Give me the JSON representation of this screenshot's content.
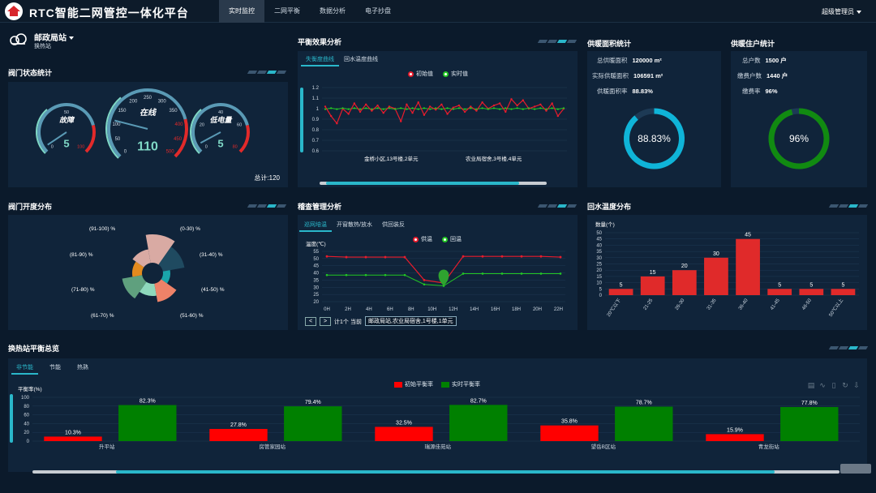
{
  "app": {
    "title": "RTC智能二网管控一体化平台",
    "nav": [
      "实时监控",
      "二网平衡",
      "数据分析",
      "电子抄盘"
    ],
    "active_nav": 0,
    "user": "超级管理员"
  },
  "station": {
    "name": "邮政局站",
    "sub": "换热站"
  },
  "valve_status": {
    "title": "阀门状态统计",
    "gauges": [
      {
        "label": "故障",
        "value": "5",
        "ticks": [
          "0",
          "50",
          "100"
        ],
        "max": 120,
        "num": 5
      },
      {
        "label": "在线",
        "value": "110",
        "ticks": [
          "0",
          "50",
          "100",
          "150",
          "200",
          "250",
          "300",
          "350",
          "400",
          "450",
          "500"
        ],
        "max": 500,
        "num": 110
      },
      {
        "label": "低电量",
        "value": "5",
        "ticks": [
          "0",
          "20",
          "40",
          "60",
          "80"
        ],
        "max": 80,
        "num": 5
      }
    ],
    "total": "总计:120"
  },
  "balance": {
    "title": "平衡效果分析",
    "tabs": [
      "失衡度曲线",
      "回水温度曲线"
    ],
    "active_tab": 0,
    "legend": [
      "初始值",
      "实时值"
    ],
    "x_labels": [
      "金桥小区,13号楼,2单元",
      "农业局宿舍,3号楼,4单元"
    ]
  },
  "heating_area": {
    "title": "供暖面积统计",
    "rows": [
      {
        "label": "总供暖面积",
        "value": "120000 m²"
      },
      {
        "label": "实际供暖面积",
        "value": "106591 m²"
      },
      {
        "label": "供暖面积率",
        "value": "88.83%"
      }
    ],
    "ring": "88.83%",
    "ring_pct": 88.83,
    "color": "#0fb4d8"
  },
  "households": {
    "title": "供暖住户统计",
    "rows": [
      {
        "label": "总户数",
        "value": "1500 户"
      },
      {
        "label": "缴费户数",
        "value": "1440 户"
      },
      {
        "label": "缴费率",
        "value": "96%"
      }
    ],
    "ring": "96%",
    "ring_pct": 96,
    "color": "#118a11"
  },
  "valve_open": {
    "title": "阀门开度分布",
    "labels": [
      "(91-100) %",
      "(0-30) %",
      "(81-90) %",
      "(31-40) %",
      "(71-80) %",
      "(41-50) %",
      "(61-70) %",
      "(51-60) %"
    ]
  },
  "inspection": {
    "title": "稽查管理分析",
    "tabs": [
      "巡网培温",
      "开窗散热/放水",
      "供回装反"
    ],
    "active_tab": 0,
    "legend": [
      "供温",
      "回温"
    ],
    "ylabel": "温度(℃)",
    "yticks": [
      "55",
      "50",
      "45",
      "40",
      "35",
      "30",
      "25",
      "20"
    ],
    "xticks": [
      "0H",
      "2H",
      "4H",
      "6H",
      "8H",
      "10H",
      "12H",
      "14H",
      "16H",
      "18H",
      "20H",
      "22H"
    ],
    "supply": [
      51.5,
      51,
      51,
      51,
      51,
      35,
      33,
      51.5,
      51.5,
      51.5,
      51.5,
      51.5,
      51
    ],
    "return": [
      38.5,
      38.5,
      38.5,
      38.5,
      38.5,
      32,
      31,
      39.5,
      39.5,
      39.5,
      39.5,
      39.5,
      39.5
    ],
    "pager": {
      "prev": "<",
      "next": ">",
      "count": "计1个",
      "current_label": "当前",
      "current": "邮政局站,农业局宿舍,1号楼,1单元"
    }
  },
  "return_temp": {
    "title": "回水温度分布",
    "chart_data": {
      "type": "bar",
      "ylabel": "数量(个)",
      "ylim": [
        0,
        50
      ],
      "yticks": [
        "50",
        "45",
        "40",
        "35",
        "30",
        "25",
        "20",
        "15",
        "10",
        "5",
        "0"
      ],
      "categories": [
        "20℃以下",
        "21-25",
        "26-30",
        "31-35",
        "36-40",
        "41-45",
        "46-50",
        "50℃以上"
      ],
      "values": [
        5,
        15,
        20,
        30,
        45,
        5,
        5,
        5
      ],
      "value_labels": [
        "5",
        "15",
        "20",
        "30",
        "45",
        "5",
        "5",
        "5"
      ]
    }
  },
  "station_balance": {
    "title": "换热站平衡总览",
    "tabs": [
      "非节能",
      "节能",
      "热熟"
    ],
    "active_tab": 0,
    "legend": [
      "初始平衡率",
      "实时平衡率"
    ],
    "colors": {
      "initial": "#ff0000",
      "realtime": "#008000"
    },
    "chart_data": {
      "type": "bar",
      "ylabel": "平衡率(%)",
      "ylim": [
        0,
        100
      ],
      "yticks": [
        "100",
        "80",
        "60",
        "40",
        "20",
        "0"
      ],
      "categories": [
        "升平站",
        "房管家园站",
        "瑞源佳苑站",
        "望岳B区站",
        "青龙街站"
      ],
      "series": [
        {
          "name": "初始平衡率",
          "values": [
            10.3,
            27.8,
            32.5,
            35.8,
            15.9
          ],
          "labels": [
            "10.3%",
            "27.8%",
            "32.5%",
            "35.8%",
            "15.9%"
          ]
        },
        {
          "name": "实时平衡率",
          "values": [
            82.3,
            79.4,
            82.7,
            78.7,
            77.8
          ],
          "labels": [
            "82.3%",
            "79.4%",
            "82.7%",
            "78.7%",
            "77.8%"
          ]
        }
      ]
    }
  }
}
